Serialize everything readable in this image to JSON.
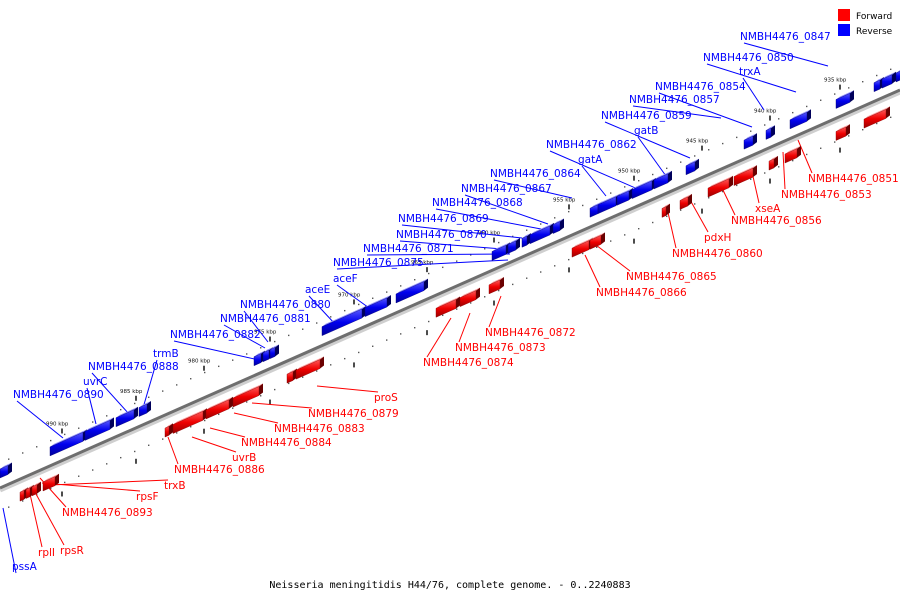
{
  "caption": "Neisseria meningitidis H44/76, complete genome. - 0..2240883",
  "legend": {
    "forward": {
      "label": "Forward",
      "color": "#ff0000"
    },
    "reverse": {
      "label": "Reverse",
      "color": "#0000ff"
    }
  },
  "kbp_ticks": [
    "990 kbp",
    "985 kbp",
    "980 kbp",
    "975 kbp",
    "970 kbp",
    "965 kbp",
    "960 kbp",
    "955 kbp",
    "950 kbp",
    "945 kbp",
    "940 kbp",
    "935 kbp"
  ],
  "reverse_genes": [
    "NMBH4476_0847",
    "NMBH4476_0850",
    "trxA",
    "NMBH4476_0854",
    "NMBH4476_0857",
    "NMBH4476_0859",
    "gatB",
    "NMBH4476_0862",
    "gatA",
    "NMBH4476_0864",
    "NMBH4476_0867",
    "NMBH4476_0868",
    "NMBH4476_0869",
    "NMBH4476_0870",
    "NMBH4476_0871",
    "NMBH4476_0875",
    "aceF",
    "aceE",
    "NMBH4476_0880",
    "NMBH4476_0881",
    "NMBH4476_0882",
    "trmB",
    "NMBH4476_0888",
    "uvrC",
    "NMBH4476_0890",
    "pssA"
  ],
  "forward_genes": [
    "NMBH4476_0851",
    "NMBH4476_0853",
    "xseA",
    "NMBH4476_0856",
    "pdxH",
    "NMBH4476_0860",
    "NMBH4476_0865",
    "NMBH4476_0866",
    "NMBH4476_0872",
    "NMBH4476_0873",
    "NMBH4476_0874",
    "proS",
    "NMBH4476_0879",
    "NMBH4476_0883",
    "NMBH4476_0884",
    "uvrB",
    "NMBH4476_0886",
    "trxB",
    "rpsF",
    "NMBH4476_0893",
    "rplI",
    "rpsR"
  ]
}
